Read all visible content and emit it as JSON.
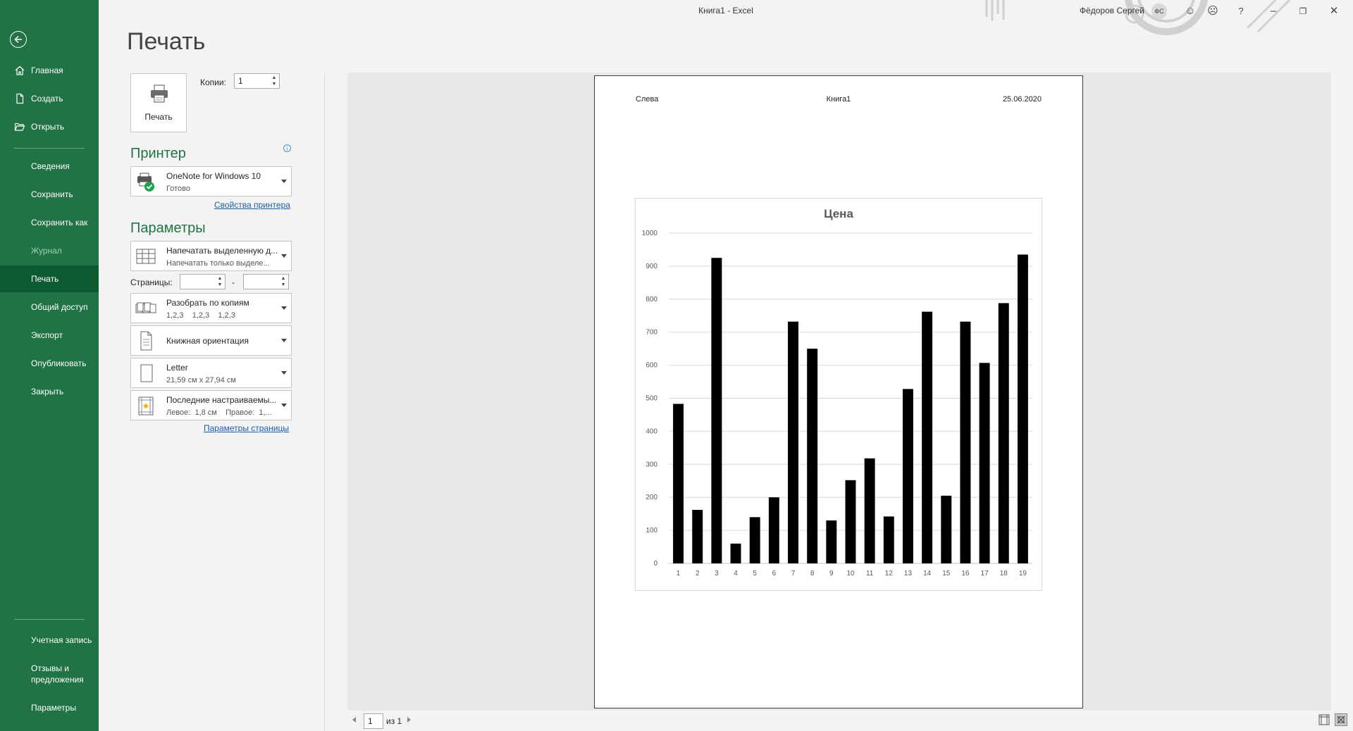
{
  "window": {
    "title": "Книга1  -  Excel",
    "user_name": "Фёдоров Сергей",
    "user_initials": "ФС"
  },
  "sidebar": {
    "items": [
      {
        "label": "Главная",
        "icon": "home-icon"
      },
      {
        "label": "Создать",
        "icon": "new-file-icon"
      },
      {
        "label": "Открыть",
        "icon": "open-folder-icon"
      },
      {
        "label": "Сведения"
      },
      {
        "label": "Сохранить"
      },
      {
        "label": "Сохранить как"
      },
      {
        "label": "Журнал",
        "disabled": true
      },
      {
        "label": "Печать",
        "active": true
      },
      {
        "label": "Общий доступ"
      },
      {
        "label": "Экспорт"
      },
      {
        "label": "Опубликовать"
      },
      {
        "label": "Закрыть"
      }
    ],
    "bottom": {
      "account": "Учетная запись",
      "feedback_line1": "Отзывы и",
      "feedback_line2": "предложения",
      "options": "Параметры"
    },
    "colors": {
      "background": "#217346",
      "active": "#0e5a30"
    }
  },
  "print": {
    "heading": "Печать",
    "print_button": "Печать",
    "copies_label": "Копии:",
    "copies_value": "1",
    "printer_section": "Принтер",
    "printer_name": "OneNote for Windows 10",
    "printer_status": "Готово",
    "printer_properties_link": "Свойства принтера",
    "params_section": "Параметры",
    "what_line1": "Напечатать выделенную д...",
    "what_line2": "Напечатать только выделе...",
    "pages_label": "Страницы:",
    "pages_dash": "-",
    "collate_line1": "Разобрать по копиям",
    "collate_line2": "1,2,3    1,2,3    1,2,3",
    "orientation": "Книжная ориентация",
    "paper_line1": "Letter",
    "paper_line2": "21,59 см x 27,94 см",
    "margins_line1": "Последние настраиваемы...",
    "margins_line2": "Левое:  1,8 см    Правое:  1,...",
    "page_setup_link": "Параметры страницы"
  },
  "preview": {
    "header_left": "Слева",
    "header_center": "Книга1",
    "header_right": "25.06.2020",
    "current_page": "1",
    "page_count_text": "из 1"
  },
  "chart_data": {
    "type": "bar",
    "title": "Цена",
    "categories": [
      "1",
      "2",
      "3",
      "4",
      "5",
      "6",
      "7",
      "8",
      "9",
      "10",
      "11",
      "12",
      "13",
      "14",
      "15",
      "16",
      "17",
      "18",
      "19"
    ],
    "values": [
      483,
      162,
      925,
      60,
      140,
      200,
      732,
      650,
      130,
      252,
      318,
      142,
      528,
      762,
      205,
      732,
      607,
      788,
      935
    ],
    "ylim": [
      0,
      1000
    ],
    "yticks": [
      0,
      100,
      200,
      300,
      400,
      500,
      600,
      700,
      800,
      900,
      1000
    ],
    "grid": true,
    "bar_color": "#000000"
  }
}
